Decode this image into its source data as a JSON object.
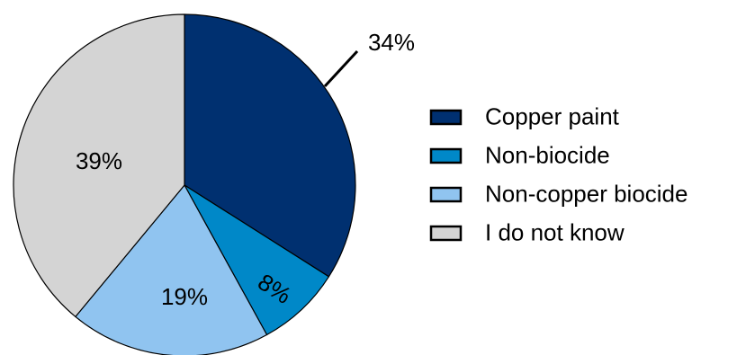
{
  "chart_data": {
    "type": "pie",
    "title": "",
    "slices": [
      {
        "name": "Copper paint",
        "value": 34,
        "label": "34%",
        "color": "#003070"
      },
      {
        "name": "Non-biocide",
        "value": 8,
        "label": "8%",
        "color": "#0088C8"
      },
      {
        "name": "Non-copper biocide",
        "value": 19,
        "label": "19%",
        "color": "#90C4F0"
      },
      {
        "name": "I do not know",
        "value": 39,
        "label": "39%",
        "color": "#D4D4D4"
      }
    ],
    "start": "12 o'clock",
    "direction": "clockwise",
    "legend_position": "right",
    "slice_border_color": "#000000"
  }
}
